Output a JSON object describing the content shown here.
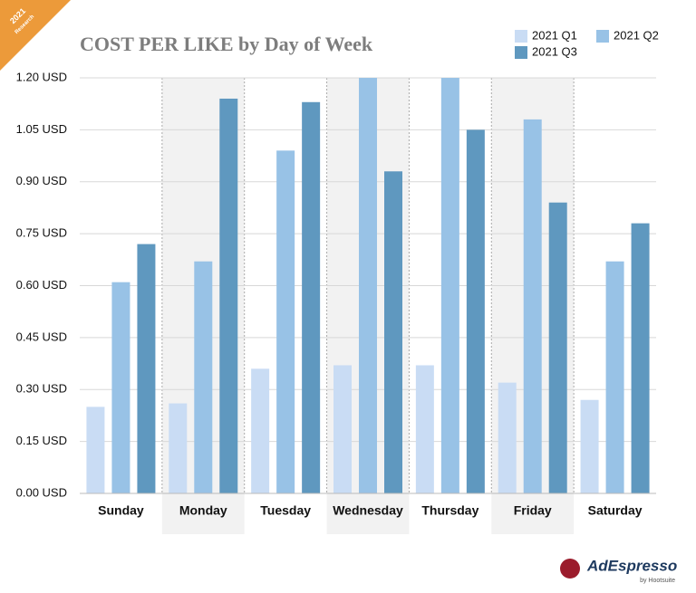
{
  "badge": {
    "year": "2021",
    "label": "Research"
  },
  "logo": {
    "name": "AdEspresso",
    "byline": "by Hootsuite"
  },
  "chart_data": {
    "type": "bar",
    "title": "COST PER LIKE by Day of Week",
    "categories": [
      "Sunday",
      "Monday",
      "Tuesday",
      "Wednesday",
      "Thursday",
      "Friday",
      "Saturday"
    ],
    "series": [
      {
        "name": "2021 Q1",
        "color": "#c9dcf4",
        "values": [
          0.25,
          0.26,
          0.36,
          0.37,
          0.37,
          0.32,
          0.27
        ]
      },
      {
        "name": "2021 Q2",
        "color": "#98c2e6",
        "values": [
          0.61,
          0.67,
          0.99,
          1.2,
          1.2,
          1.08,
          0.67
        ]
      },
      {
        "name": "2021 Q3",
        "color": "#5f98bf",
        "values": [
          0.72,
          1.14,
          1.13,
          0.93,
          1.05,
          0.84,
          0.78
        ]
      }
    ],
    "ylim": [
      0,
      1.2
    ],
    "yticks": [
      {
        "value": 0,
        "label": "0.00 USD"
      },
      {
        "value": 0.15,
        "label": "0.15 USD"
      },
      {
        "value": 0.3,
        "label": "0.30 USD"
      },
      {
        "value": 0.45,
        "label": "0.45 USD"
      },
      {
        "value": 0.6,
        "label": "0.60 USD"
      },
      {
        "value": 0.75,
        "label": "0.75 USD"
      },
      {
        "value": 0.9,
        "label": "0.90 USD"
      },
      {
        "value": 1.05,
        "label": "1.05 USD"
      },
      {
        "value": 1.2,
        "label": "1.20 USD"
      }
    ],
    "grid": true,
    "legend": "top-right"
  }
}
